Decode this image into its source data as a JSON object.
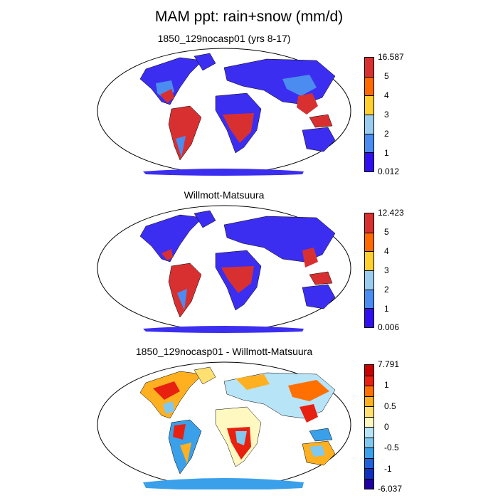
{
  "title": "MAM ppt: rain+snow (mm/d)",
  "panels": [
    {
      "subtitle": "1850_129nocasp01 (yrs 8-17)",
      "colorbar": {
        "labels": [
          "16.587",
          "5",
          "4",
          "3",
          "2",
          "1",
          "0.012"
        ],
        "colors": [
          "#d83030",
          "#ff6a00",
          "#ffd030",
          "#99ccee",
          "#4a8cf0",
          "#3010f0"
        ]
      }
    },
    {
      "subtitle": "Willmott-Matsuura",
      "colorbar": {
        "labels": [
          "12.423",
          "5",
          "4",
          "3",
          "2",
          "1",
          "0.006"
        ],
        "colors": [
          "#d83030",
          "#ff6a00",
          "#ffd030",
          "#99ccee",
          "#4a8cf0",
          "#3010f0"
        ]
      }
    },
    {
      "subtitle": "1850_129nocasp01 - Willmott-Matsuura",
      "colorbar": {
        "labels": [
          "7.791",
          "1",
          "0.5",
          "0",
          "-0.5",
          "-1",
          "-6.037"
        ],
        "colors": [
          "#c80000",
          "#e82010",
          "#ff7000",
          "#ffb020",
          "#ffe070",
          "#fff8c0",
          "#b8e4f8",
          "#7fc8f0",
          "#3aa0ea",
          "#2060d8",
          "#1030c0",
          "#2000a0"
        ]
      }
    }
  ]
}
